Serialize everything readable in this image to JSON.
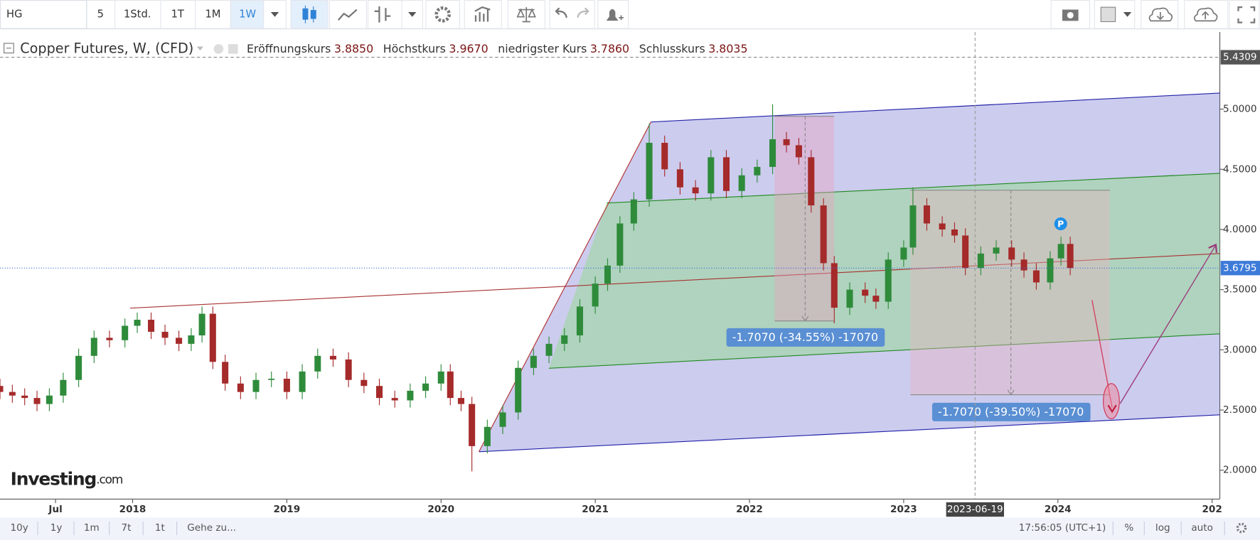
{
  "toolbar": {
    "symbol": "HG",
    "intervals": [
      "5",
      "1Std.",
      "1T",
      "1M",
      "1W"
    ]
  },
  "legend": {
    "title": "Copper Futures, W, (CFD)",
    "fields": [
      {
        "label": "Eröffnungskurs",
        "value": "3.8850"
      },
      {
        "label": "Höchstkurs",
        "value": "3.9670"
      },
      {
        "label": "niedrigster Kurs",
        "value": "3.7860"
      },
      {
        "label": "Schlusskurs",
        "value": "3.8035"
      }
    ]
  },
  "logo": {
    "name": "Investing",
    "suffix": ".com"
  },
  "annotations": [
    "-1.7070 (-34.55%) -17070",
    "-1.7070 (-39.50%) -17070",
    "P"
  ],
  "footer": {
    "ranges": [
      "10y",
      "1y",
      "1m",
      "7t",
      "1t"
    ],
    "goto": "Gehe zu...",
    "time": "17:56:05 (UTC+1)",
    "options": [
      "%",
      "log",
      "auto"
    ]
  },
  "chart_data": {
    "type": "candlestick",
    "up_color": "#2e8b3a",
    "down_color": "#a52a2a",
    "xlim": [
      2017.14,
      2025.05
    ],
    "ylim": [
      1.76,
      5.64
    ],
    "xticks": [
      {
        "value": 2017.5,
        "label": "Jul"
      },
      2018,
      2019,
      2020,
      2021,
      2022,
      2023,
      2024,
      {
        "value": 2025,
        "label": "202"
      }
    ],
    "yticks": [
      {
        "value": 2,
        "label": "2.0000"
      },
      {
        "value": 2.5,
        "label": "2.5000"
      },
      {
        "value": 3,
        "label": "3.0000"
      },
      {
        "value": 3.5,
        "label": "3.5000"
      },
      {
        "value": 4,
        "label": "4.0000"
      },
      {
        "value": 4.5,
        "label": "4.5000"
      },
      {
        "value": 5,
        "label": "5.0000"
      }
    ],
    "grid": false,
    "last_price": 3.6795,
    "crosshair_price": 5.4309,
    "crosshair_date": "2023-06-19",
    "x": [
      2017.14,
      2017.22,
      2017.3,
      2017.38,
      2017.46,
      2017.55,
      2017.65,
      2017.75,
      2017.85,
      2017.95,
      2018.03,
      2018.12,
      2018.21,
      2018.3,
      2018.38,
      2018.45,
      2018.52,
      2018.6,
      2018.7,
      2018.8,
      2018.9,
      2019.0,
      2019.1,
      2019.2,
      2019.3,
      2019.4,
      2019.5,
      2019.6,
      2019.7,
      2019.8,
      2019.9,
      2020.0,
      2020.06,
      2020.13,
      2020.2,
      2020.3,
      2020.4,
      2020.5,
      2020.6,
      2020.7,
      2020.8,
      2020.9,
      2021.0,
      2021.08,
      2021.16,
      2021.25,
      2021.35,
      2021.45,
      2021.55,
      2021.65,
      2021.75,
      2021.85,
      2021.95,
      2022.05,
      2022.15,
      2022.24,
      2022.32,
      2022.4,
      2022.48,
      2022.55,
      2022.65,
      2022.75,
      2022.82,
      2022.9,
      2023.0,
      2023.06,
      2023.15,
      2023.25,
      2023.33,
      2023.4,
      2023.5,
      2023.6,
      2023.7,
      2023.78,
      2023.86,
      2023.95,
      2024.02,
      2024.08
    ],
    "open": [
      2.7,
      2.65,
      2.62,
      2.6,
      2.55,
      2.62,
      2.75,
      2.95,
      3.1,
      3.08,
      3.2,
      3.25,
      3.15,
      3.1,
      3.05,
      3.12,
      3.3,
      2.9,
      2.72,
      2.65,
      2.75,
      2.76,
      2.65,
      2.82,
      2.95,
      2.92,
      2.75,
      2.7,
      2.6,
      2.58,
      2.66,
      2.72,
      2.82,
      2.6,
      2.55,
      2.2,
      2.36,
      2.48,
      2.85,
      2.95,
      3.05,
      3.12,
      3.36,
      3.55,
      3.7,
      4.05,
      4.25,
      4.72,
      4.5,
      4.35,
      4.3,
      4.6,
      4.32,
      4.45,
      4.52,
      4.75,
      4.7,
      4.6,
      4.2,
      3.72,
      3.35,
      3.5,
      3.45,
      3.4,
      3.75,
      3.85,
      4.2,
      4.05,
      4.0,
      3.95,
      3.68,
      3.8,
      3.85,
      3.75,
      3.66,
      3.56,
      3.76,
      3.88
    ],
    "high": [
      2.76,
      2.71,
      2.68,
      2.66,
      2.68,
      2.81,
      3.01,
      3.16,
      3.16,
      3.26,
      3.31,
      3.31,
      3.21,
      3.16,
      3.18,
      3.36,
      3.36,
      2.96,
      2.78,
      2.81,
      2.82,
      2.82,
      2.88,
      3.01,
      3.01,
      2.98,
      2.81,
      2.76,
      2.66,
      2.72,
      2.78,
      2.88,
      2.88,
      2.66,
      2.61,
      2.42,
      2.54,
      2.91,
      3.01,
      3.11,
      3.18,
      3.42,
      3.61,
      3.76,
      4.11,
      4.31,
      4.88,
      4.78,
      4.56,
      4.41,
      4.66,
      4.66,
      4.51,
      4.58,
      5.04,
      4.81,
      4.76,
      4.66,
      4.26,
      3.78,
      3.56,
      3.56,
      3.51,
      3.81,
      3.91,
      4.35,
      4.26,
      4.11,
      4.06,
      4.01,
      3.86,
      3.91,
      3.91,
      3.81,
      3.72,
      3.82,
      3.94,
      3.94
    ],
    "low": [
      2.59,
      2.56,
      2.54,
      2.49,
      2.49,
      2.56,
      2.69,
      2.89,
      3.02,
      3.02,
      3.14,
      3.09,
      3.04,
      2.99,
      2.99,
      3.06,
      2.84,
      2.66,
      2.59,
      2.59,
      2.69,
      2.59,
      2.59,
      2.76,
      2.86,
      2.69,
      2.64,
      2.54,
      2.52,
      2.52,
      2.6,
      2.66,
      2.54,
      2.49,
      1.99,
      2.14,
      2.3,
      2.42,
      2.79,
      2.89,
      2.99,
      3.06,
      3.3,
      3.49,
      3.64,
      3.99,
      4.19,
      4.44,
      4.29,
      4.24,
      4.24,
      4.26,
      4.26,
      4.39,
      4.46,
      4.64,
      4.54,
      4.14,
      3.66,
      3.22,
      3.29,
      3.39,
      3.34,
      3.34,
      3.69,
      3.79,
      3.99,
      3.94,
      3.89,
      3.62,
      3.62,
      3.74,
      3.69,
      3.6,
      3.5,
      3.5,
      3.7,
      3.62
    ],
    "close": [
      2.65,
      2.62,
      2.6,
      2.55,
      2.62,
      2.75,
      2.95,
      3.1,
      3.08,
      3.2,
      3.25,
      3.15,
      3.1,
      3.05,
      3.12,
      3.3,
      2.9,
      2.72,
      2.65,
      2.75,
      2.76,
      2.65,
      2.82,
      2.95,
      2.92,
      2.75,
      2.7,
      2.6,
      2.58,
      2.66,
      2.72,
      2.82,
      2.6,
      2.55,
      2.2,
      2.36,
      2.48,
      2.85,
      2.95,
      3.05,
      3.12,
      3.36,
      3.55,
      3.7,
      4.05,
      4.25,
      4.72,
      4.5,
      4.35,
      4.3,
      4.6,
      4.32,
      4.45,
      4.52,
      4.75,
      4.7,
      4.6,
      4.2,
      3.72,
      3.35,
      3.5,
      3.45,
      3.4,
      3.75,
      3.85,
      4.2,
      4.05,
      4.0,
      3.95,
      3.68,
      3.8,
      3.85,
      3.75,
      3.66,
      3.56,
      3.76,
      3.88,
      3.68
    ]
  }
}
